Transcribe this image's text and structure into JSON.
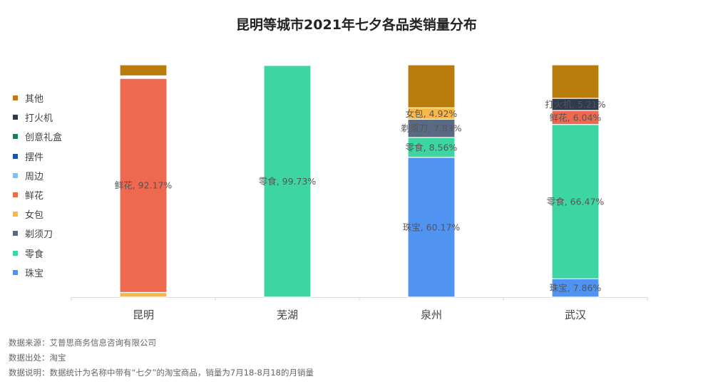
{
  "chart_data": {
    "type": "bar",
    "stacked": true,
    "normalized_percent": true,
    "title": "昆明等城市2021年七夕各品类销量分布",
    "categories": [
      "昆明",
      "芜湖",
      "泉州",
      "武汉"
    ],
    "series": [
      {
        "name": "珠宝",
        "color": "#5093f0",
        "values": [
          0.0,
          0.0,
          60.17,
          7.86
        ]
      },
      {
        "name": "零食",
        "color": "#3dd6a3",
        "values": [
          0.0,
          99.73,
          8.56,
          66.47
        ]
      },
      {
        "name": "剃须刀",
        "color": "#5b6a84",
        "values": [
          0.0,
          0.0,
          7.83,
          0.0
        ]
      },
      {
        "name": "女包",
        "color": "#f7b84b",
        "values": [
          2.0,
          0.0,
          4.92,
          0.0
        ]
      },
      {
        "name": "鲜花",
        "color": "#ef6850",
        "values": [
          92.17,
          0.0,
          0.0,
          6.04
        ]
      },
      {
        "name": "周边",
        "color": "#7fc1ee",
        "values": [
          0.3,
          0.0,
          0.0,
          0.0
        ]
      },
      {
        "name": "摆件",
        "color": "#2053a8",
        "values": [
          0.3,
          0.0,
          0.0,
          0.0
        ]
      },
      {
        "name": "创意礼盒",
        "color": "#1f7a55",
        "values": [
          0.2,
          0.0,
          0.0,
          0.0
        ]
      },
      {
        "name": "打火机",
        "color": "#2e3a4e",
        "values": [
          0.3,
          0.0,
          0.0,
          5.21
        ]
      },
      {
        "name": "其他",
        "color": "#b97d0d",
        "values": [
          4.73,
          0.27,
          18.52,
          14.42
        ]
      }
    ],
    "data_labels": [
      {
        "category": "昆明",
        "series": "鲜花",
        "text": "鲜花, 92.17%"
      },
      {
        "category": "芜湖",
        "series": "零食",
        "text": "零食, 99.73%"
      },
      {
        "category": "泉州",
        "series": "女包",
        "text": "女包, 4.92%"
      },
      {
        "category": "泉州",
        "series": "剃须刀",
        "text": "剃须刀, 7.83%"
      },
      {
        "category": "泉州",
        "series": "零食",
        "text": "零食, 8.56%"
      },
      {
        "category": "泉州",
        "series": "珠宝",
        "text": "珠宝, 60.17%"
      },
      {
        "category": "武汉",
        "series": "打火机",
        "text": "打火机, 5.21%"
      },
      {
        "category": "武汉",
        "series": "鲜花",
        "text": "鲜花, 6.04%"
      },
      {
        "category": "武汉",
        "series": "零食",
        "text": "零食, 66.47%"
      },
      {
        "category": "武汉",
        "series": "珠宝",
        "text": "珠宝, 7.86%"
      }
    ],
    "legend_order": [
      "其他",
      "打火机",
      "创意礼盒",
      "摆件",
      "周边",
      "鲜花",
      "女包",
      "剃须刀",
      "零食",
      "珠宝"
    ],
    "legend_position": "left",
    "ylim": [
      0,
      100
    ],
    "grid": false
  },
  "footer": {
    "source": "数据来源：艾普思商务信息咨询有限公司",
    "origin": "数据出处：淘宝",
    "note": "数据说明：数据统计为名称中带有“七夕”的淘宝商品，销量为7月18-8月18的月销量"
  }
}
